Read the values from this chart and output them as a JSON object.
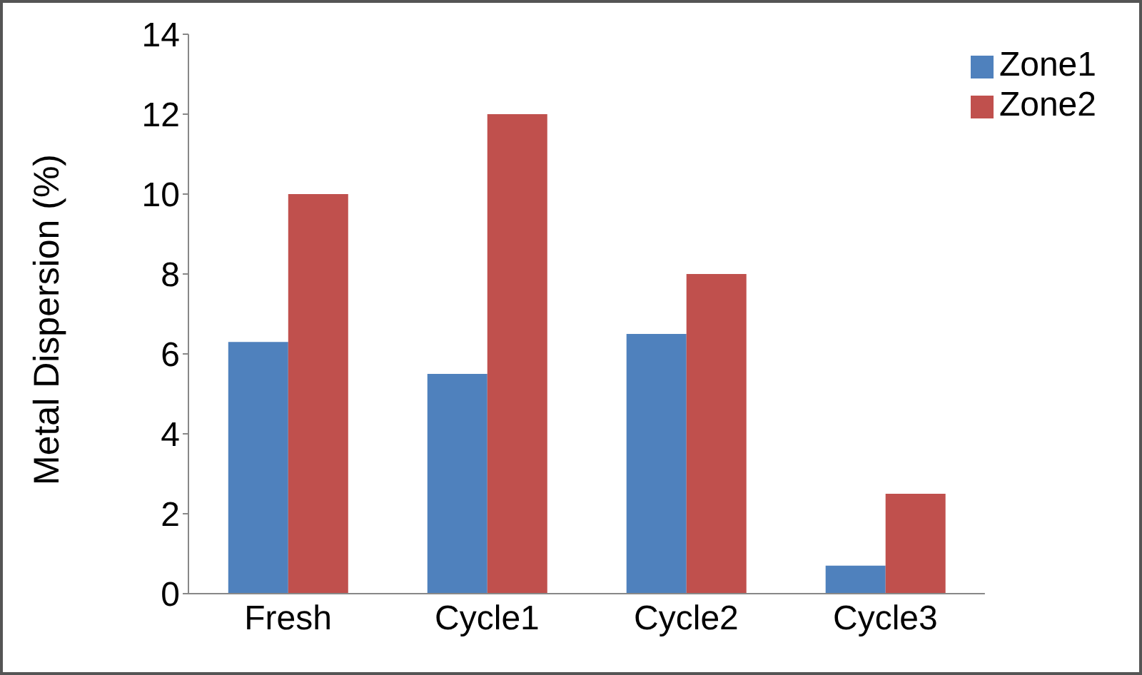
{
  "chart_data": {
    "type": "bar",
    "ylabel": "Metal Dispersion (%)",
    "categories": [
      "Fresh",
      "Cycle1",
      "Cycle2",
      "Cycle3"
    ],
    "series": [
      {
        "name": "Zone1",
        "color": "#4f81bd",
        "values": [
          6.3,
          5.5,
          6.5,
          0.7
        ]
      },
      {
        "name": "Zone2",
        "color": "#c0504d",
        "values": [
          10,
          12,
          8,
          2.5
        ]
      }
    ],
    "ylim": [
      0,
      14
    ],
    "yticks": [
      0,
      2,
      4,
      6,
      8,
      10,
      12,
      14
    ],
    "grid": false,
    "legend": "top right"
  }
}
